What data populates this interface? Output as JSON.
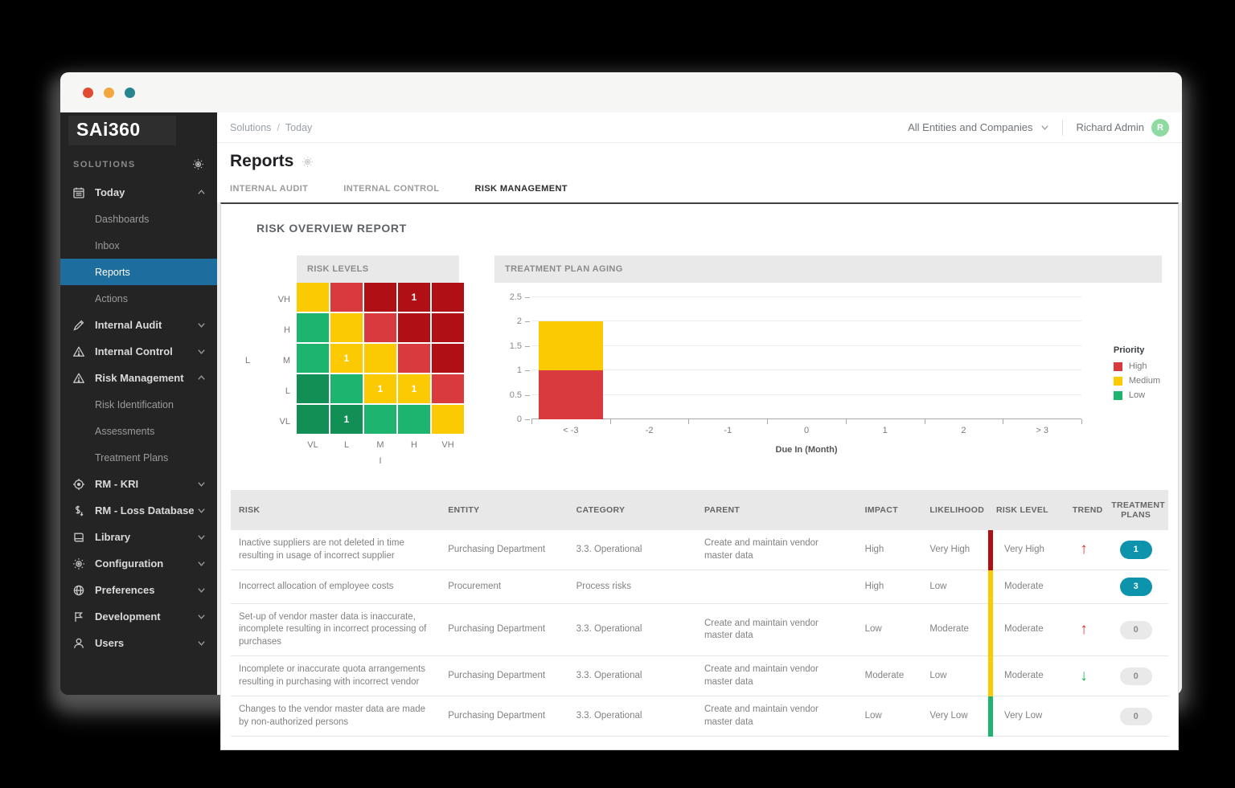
{
  "window": {
    "traffic_lights": [
      "#e14b31",
      "#f3a73e",
      "#28858f"
    ]
  },
  "sidebar": {
    "logo": "SAi360",
    "section_label": "SOLUTIONS",
    "items": [
      {
        "label": "Today",
        "icon": "calendar-icon",
        "state": "expanded",
        "children": [
          {
            "label": "Dashboards",
            "active": false
          },
          {
            "label": "Inbox",
            "active": false
          },
          {
            "label": "Reports",
            "active": true
          },
          {
            "label": "Actions",
            "active": false
          }
        ]
      },
      {
        "label": "Internal Audit",
        "icon": "pencil-icon",
        "state": "collapsed",
        "children": []
      },
      {
        "label": "Internal Control",
        "icon": "warning-icon",
        "state": "collapsed",
        "children": []
      },
      {
        "label": "Risk Management",
        "icon": "warning-icon",
        "state": "expanded",
        "children": [
          {
            "label": "Risk Identification",
            "active": false
          },
          {
            "label": "Assessments",
            "active": false
          },
          {
            "label": "Treatment Plans",
            "active": false
          }
        ]
      },
      {
        "label": "RM - KRI",
        "icon": "target-icon",
        "state": "collapsed",
        "children": []
      },
      {
        "label": "RM - Loss Database",
        "icon": "dollar-icon",
        "state": "collapsed",
        "children": []
      },
      {
        "label": "Library",
        "icon": "book-icon",
        "state": "collapsed",
        "children": []
      },
      {
        "label": "Configuration",
        "icon": "gear-icon",
        "state": "collapsed",
        "children": []
      },
      {
        "label": "Preferences",
        "icon": "globe-icon",
        "state": "collapsed",
        "children": []
      },
      {
        "label": "Development",
        "icon": "dev-icon",
        "state": "collapsed",
        "children": []
      },
      {
        "label": "Users",
        "icon": "user-icon",
        "state": "collapsed",
        "children": []
      }
    ]
  },
  "header": {
    "breadcrumb": [
      "Solutions",
      "Today"
    ],
    "entity_selector": "All Entities and Companies",
    "user_name": "Richard Admin",
    "user_initial": "R",
    "page_title": "Reports",
    "tabs": [
      {
        "label": "INTERNAL AUDIT",
        "active": false
      },
      {
        "label": "INTERNAL CONTROL",
        "active": false
      },
      {
        "label": "RISK MANAGEMENT",
        "active": true
      }
    ]
  },
  "report": {
    "title": "RISK OVERVIEW REPORT"
  },
  "palette": {
    "darkred": "#b00f15",
    "red": "#d93a3e",
    "yellow": "#fbca02",
    "green": "#1db470",
    "darkgreen": "#128f55",
    "badge_teal": "#0d93ac",
    "active_nav_blue": "#1d6d9e",
    "trend_up_red": "#e02b2b",
    "trend_down_green": "#17b14e"
  },
  "chart_data": [
    {
      "type": "heatmap",
      "title": "RISK LEVELS",
      "y_axis_label": "L",
      "x_axis_label": "I",
      "rows": [
        "VH",
        "H",
        "M",
        "L",
        "VL"
      ],
      "columns": [
        "VL",
        "L",
        "M",
        "H",
        "VH"
      ],
      "cell_colors": [
        [
          "yellow",
          "red",
          "darkred",
          "darkred",
          "darkred"
        ],
        [
          "green",
          "yellow",
          "red",
          "darkred",
          "darkred"
        ],
        [
          "green",
          "yellow",
          "yellow",
          "red",
          "darkred"
        ],
        [
          "darkgreen",
          "green",
          "yellow",
          "yellow",
          "red"
        ],
        [
          "darkgreen",
          "darkgreen",
          "green",
          "green",
          "yellow"
        ]
      ],
      "cell_values": [
        [
          "",
          "",
          "",
          "1",
          ""
        ],
        [
          "",
          "",
          "",
          "",
          ""
        ],
        [
          "",
          "1",
          "",
          "",
          ""
        ],
        [
          "",
          "",
          "1",
          "1",
          ""
        ],
        [
          "",
          "1",
          "",
          "",
          ""
        ]
      ]
    },
    {
      "type": "bar",
      "stacked": true,
      "title": "TREATMENT PLAN AGING",
      "categories": [
        "< -3",
        "-2",
        "-1",
        "0",
        "1",
        "2",
        "> 3"
      ],
      "series": [
        {
          "name": "High",
          "color": "#d93a3e",
          "values": [
            1,
            0,
            0,
            0,
            0,
            0,
            0
          ]
        },
        {
          "name": "Medium",
          "color": "#fbca02",
          "values": [
            1,
            0,
            0,
            0,
            0,
            0,
            0
          ]
        },
        {
          "name": "Low",
          "color": "#1db470",
          "values": [
            0,
            0,
            0,
            0,
            0,
            0,
            0
          ]
        }
      ],
      "xlabel": "Due In (Month)",
      "ylim": [
        0,
        2.5
      ],
      "yticks": [
        "0",
        "0.5",
        "1",
        "1.5",
        "2",
        "2.5"
      ],
      "grid": true,
      "legend_title": "Priority",
      "legend_position": "right"
    }
  ],
  "table": {
    "columns": [
      "RISK",
      "ENTITY",
      "CATEGORY",
      "PARENT",
      "IMPACT",
      "LIKELIHOOD",
      "RISK LEVEL",
      "TREND",
      "TREATMENT PLANS"
    ],
    "rows": [
      {
        "risk": "Inactive suppliers are not deleted in time resulting in usage of incorrect supplier",
        "entity": "Purchasing Department",
        "category": "3.3. Operational",
        "parent": "Create and maintain vendor master data",
        "impact": "High",
        "likelihood": "Very High",
        "risk_level": "Very High",
        "risk_level_color": "darkred",
        "trend": "up",
        "treatment_plans": "1"
      },
      {
        "risk": "Incorrect allocation of employee costs",
        "entity": "Procurement",
        "category": "Process risks",
        "parent": "",
        "impact": "High",
        "likelihood": "Low",
        "risk_level": "Moderate",
        "risk_level_color": "yellow",
        "trend": "",
        "treatment_plans": "3"
      },
      {
        "risk": "Set-up of vendor master data is inaccurate, incomplete resulting in incorrect processing of purchases",
        "entity": "Purchasing Department",
        "category": "3.3. Operational",
        "parent": "Create and maintain vendor master data",
        "impact": "Low",
        "likelihood": "Moderate",
        "risk_level": "Moderate",
        "risk_level_color": "yellow",
        "trend": "up",
        "treatment_plans": "0"
      },
      {
        "risk": "Incomplete or inaccurate quota arrangements resulting in purchasing with incorrect vendor",
        "entity": "Purchasing Department",
        "category": "3.3. Operational",
        "parent": "Create and maintain vendor master data",
        "impact": "Moderate",
        "likelihood": "Low",
        "risk_level": "Moderate",
        "risk_level_color": "yellow",
        "trend": "down",
        "treatment_plans": "0"
      },
      {
        "risk": "Changes to the vendor master data are made by non-authorized persons",
        "entity": "Purchasing Department",
        "category": "3.3. Operational",
        "parent": "Create and maintain vendor master data",
        "impact": "Low",
        "likelihood": "Very Low",
        "risk_level": "Very Low",
        "risk_level_color": "green",
        "trend": "",
        "treatment_plans": "0"
      }
    ]
  }
}
